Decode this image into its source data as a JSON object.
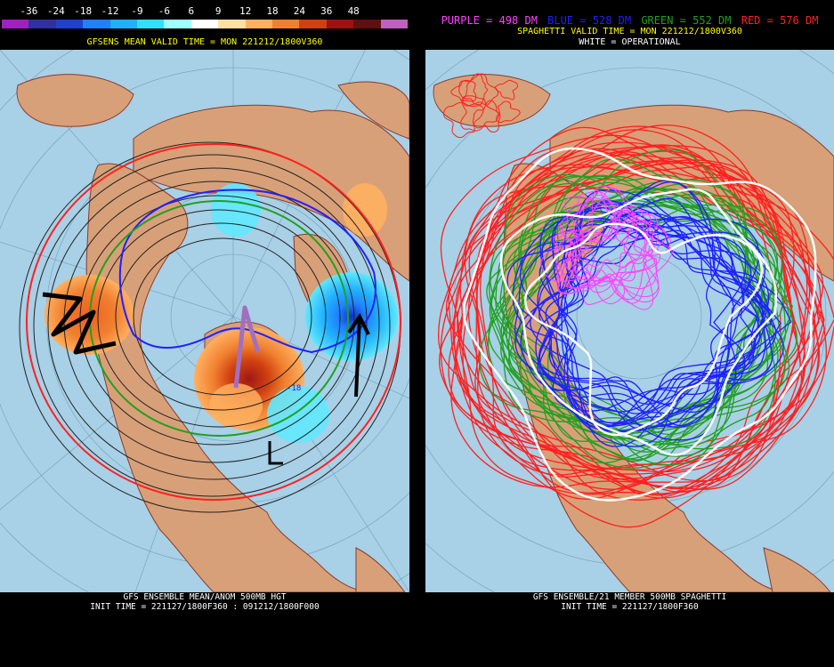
{
  "colorbar": {
    "labels": [
      "-36",
      "-24",
      "-18",
      "-12",
      "-9",
      "-6",
      "6",
      "9",
      "12",
      "18",
      "24",
      "36",
      "48"
    ],
    "colors": [
      "#a020c0",
      "#3030a0",
      "#2040d0",
      "#2080ff",
      "#20b0ff",
      "#30e0ff",
      "#a0ffff",
      "#ffffff",
      "#ffe0a0",
      "#ffb060",
      "#f08030",
      "#d04010",
      "#a01010",
      "#601010",
      "#c060c0"
    ]
  },
  "left": {
    "title": "GFSENS MEAN VALID TIME = MON 221212/1800V360",
    "anomaly_label": "-18",
    "footer_line1": "GFS ENSEMBLE MEAN/ANOM 500MB HGT",
    "footer_line2": "INIT TIME = 221127/1800F360 : 091212/1800F000"
  },
  "right": {
    "legend": {
      "purple": "PURPLE = 498 DM",
      "blue": "BLUE = 528 DM",
      "green": "GREEN = 552 DM",
      "red": "RED = 576 DM"
    },
    "title": "SPAGHETTI VALID TIME = MON 221212/1800V360",
    "operational": "WHITE = OPERATIONAL",
    "footer_line1": "GFS ENSEMBLE/21 MEMBER 500MB SPAGHETTI",
    "footer_line2": "INIT TIME = 221127/1800F360"
  },
  "colors": {
    "ocean": "#a8d0e6",
    "land": "#d8a078",
    "border": "#8b3a2a",
    "title_yellow": "#ffff00",
    "purple": "#ff40ff",
    "blue": "#2020ff",
    "green": "#20a020",
    "red": "#ff2020"
  }
}
